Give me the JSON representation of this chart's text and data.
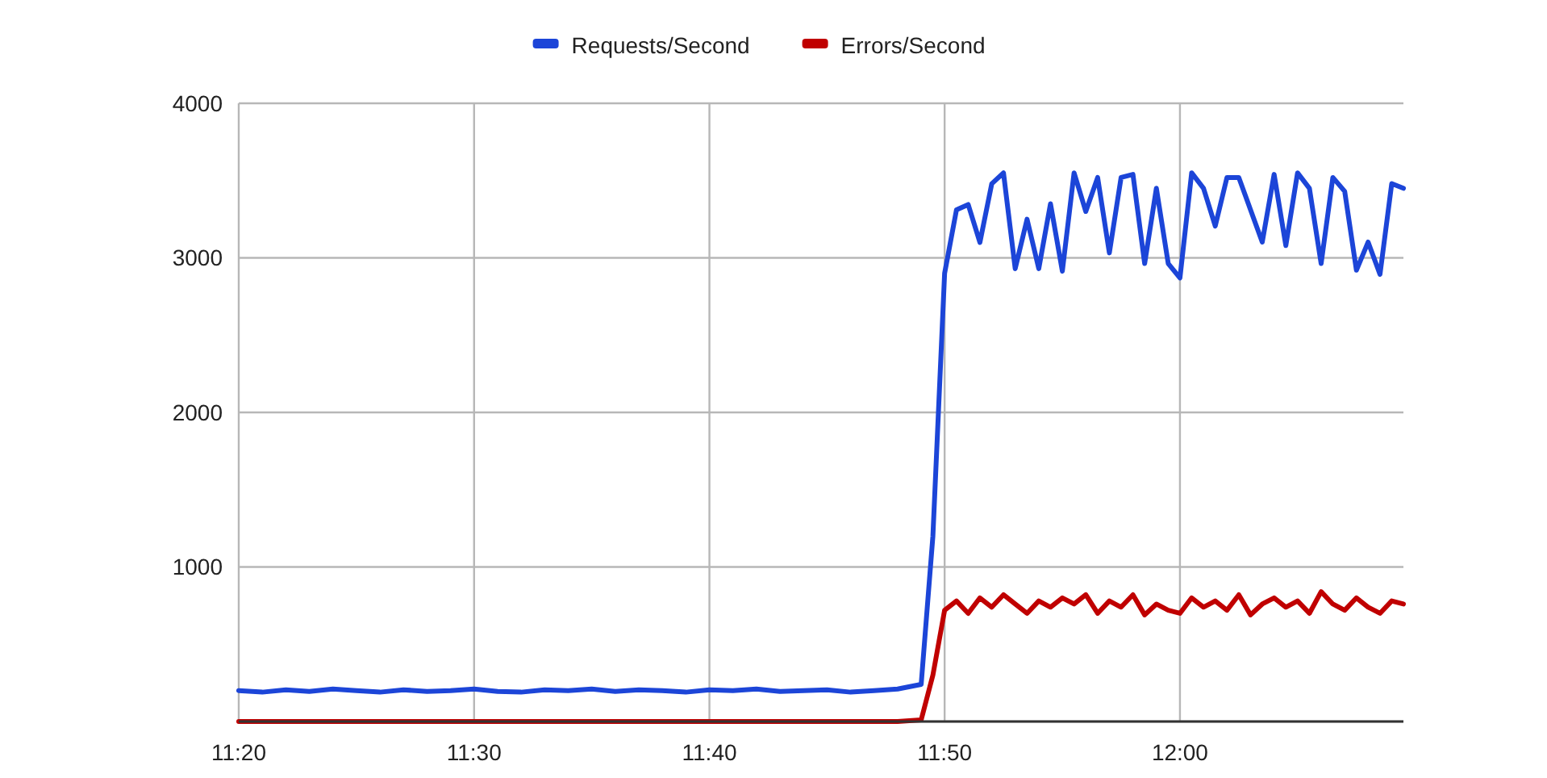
{
  "chart_data": {
    "type": "line",
    "x": [
      11.3333,
      11.35,
      11.3667,
      11.3833,
      11.4,
      11.4167,
      11.4333,
      11.45,
      11.4667,
      11.4833,
      11.5,
      11.5167,
      11.5333,
      11.55,
      11.5667,
      11.5833,
      11.6,
      11.6167,
      11.6333,
      11.65,
      11.6667,
      11.6833,
      11.7,
      11.7167,
      11.7333,
      11.75,
      11.7667,
      11.7833,
      11.8,
      11.8167,
      11.825,
      11.8333,
      11.8417,
      11.85,
      11.8583,
      11.8667,
      11.875,
      11.8833,
      11.8917,
      11.9,
      11.9083,
      11.9167,
      11.925,
      11.9333,
      11.9417,
      11.95,
      11.9583,
      11.9667,
      11.975,
      11.9833,
      11.9917,
      12,
      12.0083,
      12.0167,
      12.025,
      12.0333,
      12.0417,
      12.05,
      12.0583,
      12.0667,
      12.075,
      12.0833,
      12.0917,
      12.1,
      12.1083,
      12.1167,
      12.125,
      12.1333,
      12.1417,
      12.15,
      12.1583
    ],
    "series": [
      {
        "name": "Requests/Second",
        "color": "#1c45d8",
        "values": [
          200,
          190,
          205,
          195,
          210,
          200,
          190,
          205,
          195,
          200,
          210,
          195,
          190,
          205,
          200,
          210,
          195,
          205,
          200,
          190,
          205,
          200,
          210,
          195,
          200,
          205,
          190,
          200,
          210,
          240,
          1200,
          2900,
          3311,
          3345,
          3100,
          3480,
          3550,
          2930,
          3250,
          2930,
          3350,
          2914,
          3550,
          3300,
          3520,
          3032,
          3520,
          3540,
          2963,
          3450,
          2963,
          2870,
          3550,
          3450,
          3206,
          3520,
          3520,
          3311,
          3102,
          3540,
          3080,
          3550,
          3450,
          2963,
          3520,
          3430,
          2920,
          3102,
          2893,
          3480,
          3450
        ]
      },
      {
        "name": "Errors/Second",
        "color": "#c00000",
        "values": [
          0,
          0,
          0,
          0,
          0,
          0,
          0,
          0,
          0,
          0,
          0,
          0,
          0,
          0,
          0,
          0,
          0,
          0,
          0,
          0,
          0,
          0,
          0,
          0,
          0,
          0,
          0,
          0,
          0,
          10,
          300,
          720,
          780,
          700,
          800,
          740,
          820,
          760,
          700,
          780,
          740,
          800,
          760,
          820,
          700,
          780,
          740,
          820,
          690,
          760,
          720,
          700,
          800,
          740,
          780,
          720,
          820,
          690,
          760,
          800,
          740,
          780,
          700,
          840,
          760,
          720,
          800,
          740,
          700,
          780,
          760
        ]
      }
    ],
    "xlim": [
      11.3333,
      12.1583
    ],
    "xticks": [
      {
        "value": 11.3333,
        "label": "11:20"
      },
      {
        "value": 11.5,
        "label": "11:30"
      },
      {
        "value": 11.6667,
        "label": "11:40"
      },
      {
        "value": 11.8333,
        "label": "11:50"
      },
      {
        "value": 12,
        "label": "12:00"
      }
    ],
    "ylim": [
      0,
      4000
    ],
    "yticks": [
      {
        "value": 0,
        "label": null
      },
      1000,
      2000,
      3000,
      4000
    ],
    "grid": true,
    "legend": "top",
    "marker": "none",
    "line_style": "solid"
  }
}
